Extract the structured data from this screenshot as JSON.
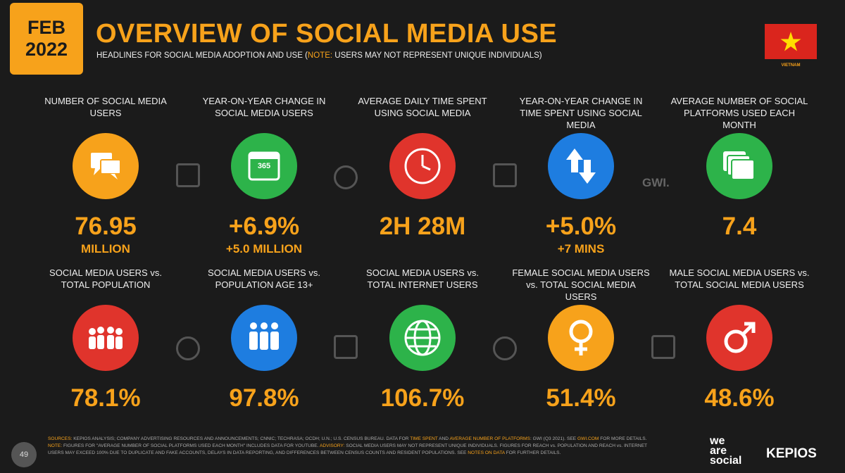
{
  "header": {
    "month": "FEB",
    "year": "2022",
    "title": "OVERVIEW OF SOCIAL MEDIA USE",
    "subtitle_parts": [
      "HEADLINES FOR SOCIAL MEDIA ADOPTION AND USE (",
      "NOTE:",
      " USERS MAY NOT REPRESENT UNIQUE INDIVIDUALS)"
    ],
    "country": "VIETNAM"
  },
  "stats": [
    {
      "label": "NUMBER OF SOCIAL MEDIA USERS",
      "value": "76.95",
      "sub": "MILLION",
      "color": "#f7a21b"
    },
    {
      "label": "YEAR-ON-YEAR CHANGE IN SOCIAL MEDIA USERS",
      "value": "+6.9%",
      "sub": "+5.0 MILLION",
      "color": "#2db34a",
      "icon_text": "365"
    },
    {
      "label": "AVERAGE DAILY TIME SPENT USING SOCIAL MEDIA",
      "value": "2H 28M",
      "color": "#e0342c"
    },
    {
      "label": "YEAR-ON-YEAR CHANGE IN TIME SPENT USING SOCIAL MEDIA",
      "value": "+5.0%",
      "sub": "+7 MINS",
      "color": "#1e7de0"
    },
    {
      "label": "AVERAGE NUMBER OF SOCIAL PLATFORMS USED EACH MONTH",
      "value": "7.4",
      "color": "#2db34a"
    },
    {
      "label": "SOCIAL MEDIA USERS vs. TOTAL POPULATION",
      "value": "78.1%",
      "color": "#e0342c"
    },
    {
      "label": "SOCIAL MEDIA USERS vs. POPULATION AGE 13+",
      "value": "97.8%",
      "color": "#1e7de0"
    },
    {
      "label": "SOCIAL MEDIA USERS vs. TOTAL INTERNET USERS",
      "value": "106.7%",
      "color": "#2db34a"
    },
    {
      "label": "FEMALE SOCIAL MEDIA USERS vs. TOTAL SOCIAL MEDIA USERS",
      "value": "51.4%",
      "color": "#f7a21b"
    },
    {
      "label": "MALE SOCIAL MEDIA USERS vs. TOTAL SOCIAL MEDIA USERS",
      "value": "48.6%",
      "color": "#e0342c"
    }
  ],
  "gwi_mark": "GWI.",
  "footer": {
    "parts": [
      "SOURCES:",
      " KEPIOS ANALYSIS; COMPANY ADVERTISING RESOURCES AND ANNOUNCEMENTS; CNNIC; TECHRASA; OCDH; U.N.; U.S. CENSUS BUREAU. DATA FOR ",
      "TIME SPENT",
      " AND ",
      "AVERAGE NUMBER OF PLATFORMS",
      ": GWI (Q3 2021). SEE ",
      "GWI.COM",
      " FOR MORE DETAILS. ",
      "NOTE:",
      " FIGURES FOR \"AVERAGE NUMBER OF SOCIAL PLATFORMS USED EACH MONTH\" INCLUDES DATA FOR YOUTUBE. ",
      "ADVISORY:",
      " SOCIAL MEDIA USERS MAY NOT REPRESENT UNIQUE INDIVIDUALS. FIGURES FOR REACH vs. POPULATION AND REACH vs. INTERNET USERS MAY EXCEED 100% DUE TO DUPLICATE AND FAKE ACCOUNTS, DELAYS IN DATA REPORTING, AND DIFFERENCES BETWEEN CENSUS COUNTS AND RESIDENT POPULATIONS. SEE ",
      "NOTES ON DATA",
      " FOR FURTHER DETAILS."
    ],
    "page": "49",
    "brand1": [
      "we",
      "are",
      "social"
    ],
    "brand2": "KEPIOS"
  }
}
